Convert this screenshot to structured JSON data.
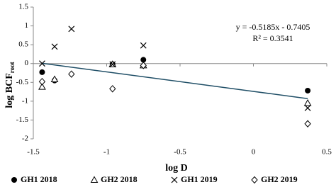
{
  "chart_data": {
    "type": "scatter",
    "x_label": "log D",
    "y_label": "log BCF",
    "y_label_sub": "root",
    "annotations": [
      "y = -0.5185x - 0.7405",
      "R² = 0.3541"
    ],
    "xlim": [
      -1.5,
      0.5
    ],
    "xticks": [
      -1.5,
      -1,
      -0.5,
      0,
      0.5
    ],
    "ylim": [
      -2,
      1.5
    ],
    "yticks": [
      1.5,
      1,
      0.5,
      0,
      -0.5,
      -1,
      -1.5,
      -2
    ],
    "series": [
      {
        "name": "GH1 2018",
        "marker": "circle",
        "color": "#000000",
        "x": [
          -1.44,
          -1.355,
          -0.96,
          -0.75,
          0.37
        ],
        "values": [
          -0.23,
          -0.45,
          -0.02,
          0.1,
          -0.72
        ]
      },
      {
        "name": "GH2 2018",
        "marker": "triangle",
        "color": "#000000",
        "x": [
          -1.44,
          -1.355,
          -0.96,
          -0.75,
          0.37
        ],
        "values": [
          -0.62,
          -0.42,
          -0.02,
          -0.05,
          -1.05
        ]
      },
      {
        "name": "GH1 2019",
        "marker": "x",
        "color": "#000000",
        "x": [
          -1.44,
          -1.355,
          -1.24,
          -0.96,
          -0.75,
          0.37
        ],
        "values": [
          0.0,
          0.45,
          0.92,
          -0.02,
          0.48,
          -1.18
        ]
      },
      {
        "name": "GH2 2019",
        "marker": "diamond",
        "color": "#000000",
        "x": [
          -1.44,
          -1.24,
          -0.96,
          -0.75,
          0.37
        ],
        "values": [
          -0.48,
          -0.28,
          -0.67,
          -0.05,
          -1.6
        ]
      }
    ],
    "trendline": {
      "color": "#1f4e66",
      "x": [
        -1.44,
        0.37
      ],
      "values": [
        0.006,
        -0.932
      ]
    }
  }
}
